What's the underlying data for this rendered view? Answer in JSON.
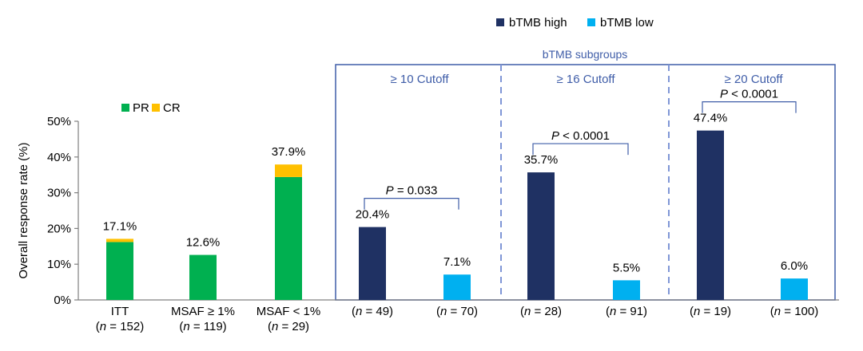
{
  "chart_data": {
    "type": "bar",
    "ylabel": "Overall response rate (%)",
    "ylim": [
      0,
      50
    ],
    "yticks": [
      "0%",
      "10%",
      "20%",
      "30%",
      "40%",
      "50%"
    ],
    "ytick_values": [
      0,
      10,
      20,
      30,
      40,
      50
    ],
    "grid": false,
    "stack_legend": {
      "placement": "top-left",
      "items": [
        {
          "name": "PR",
          "color": "#00b050"
        },
        {
          "name": "CR",
          "color": "#ffc000"
        }
      ]
    },
    "subgroup_legend": {
      "placement": "top-right",
      "items": [
        {
          "name": "bTMB high",
          "color": "#1f3163"
        },
        {
          "name": "bTMB low",
          "color": "#00b0f0"
        }
      ]
    },
    "subgroup_box_title": "bTMB subgroups",
    "stacked_bars": [
      {
        "label": "ITT",
        "n": "(n = 152)",
        "pr": 16.2,
        "cr": 0.9,
        "total_label": "17.1%"
      },
      {
        "label": "MSAF ≥ 1%",
        "n": "(n = 119)",
        "pr": 12.6,
        "cr": 0,
        "total_label": "12.6%"
      },
      {
        "label": "MSAF < 1%",
        "n": "(n = 29)",
        "pr": 34.4,
        "cr": 3.5,
        "total_label": "37.9%"
      }
    ],
    "cutoff_groups": [
      {
        "title": "≥ 10 Cutoff",
        "p_label": "P = 0.033",
        "high": {
          "value": 20.4,
          "label": "20.4%",
          "n": "(n = 49)"
        },
        "low": {
          "value": 7.1,
          "label": "7.1%",
          "n": "(n = 70)"
        }
      },
      {
        "title": "≥ 16 Cutoff",
        "p_label": "P < 0.0001",
        "high": {
          "value": 35.7,
          "label": "35.7%",
          "n": "(n = 28)"
        },
        "low": {
          "value": 5.5,
          "label": "5.5%",
          "n": "(n = 91)"
        }
      },
      {
        "title": "≥ 20 Cutoff",
        "p_label": "P < 0.0001",
        "high": {
          "value": 47.4,
          "label": "47.4%",
          "n": "(n = 19)"
        },
        "low": {
          "value": 6.0,
          "label": "6.0%",
          "n": "(n = 100)"
        }
      }
    ],
    "colors": {
      "axis": "#808080",
      "box": "#3f5da8",
      "divider": "#7f96d6",
      "bracket": "#3f5da8",
      "group_title": "#3f5da8",
      "text": "#000000"
    }
  }
}
